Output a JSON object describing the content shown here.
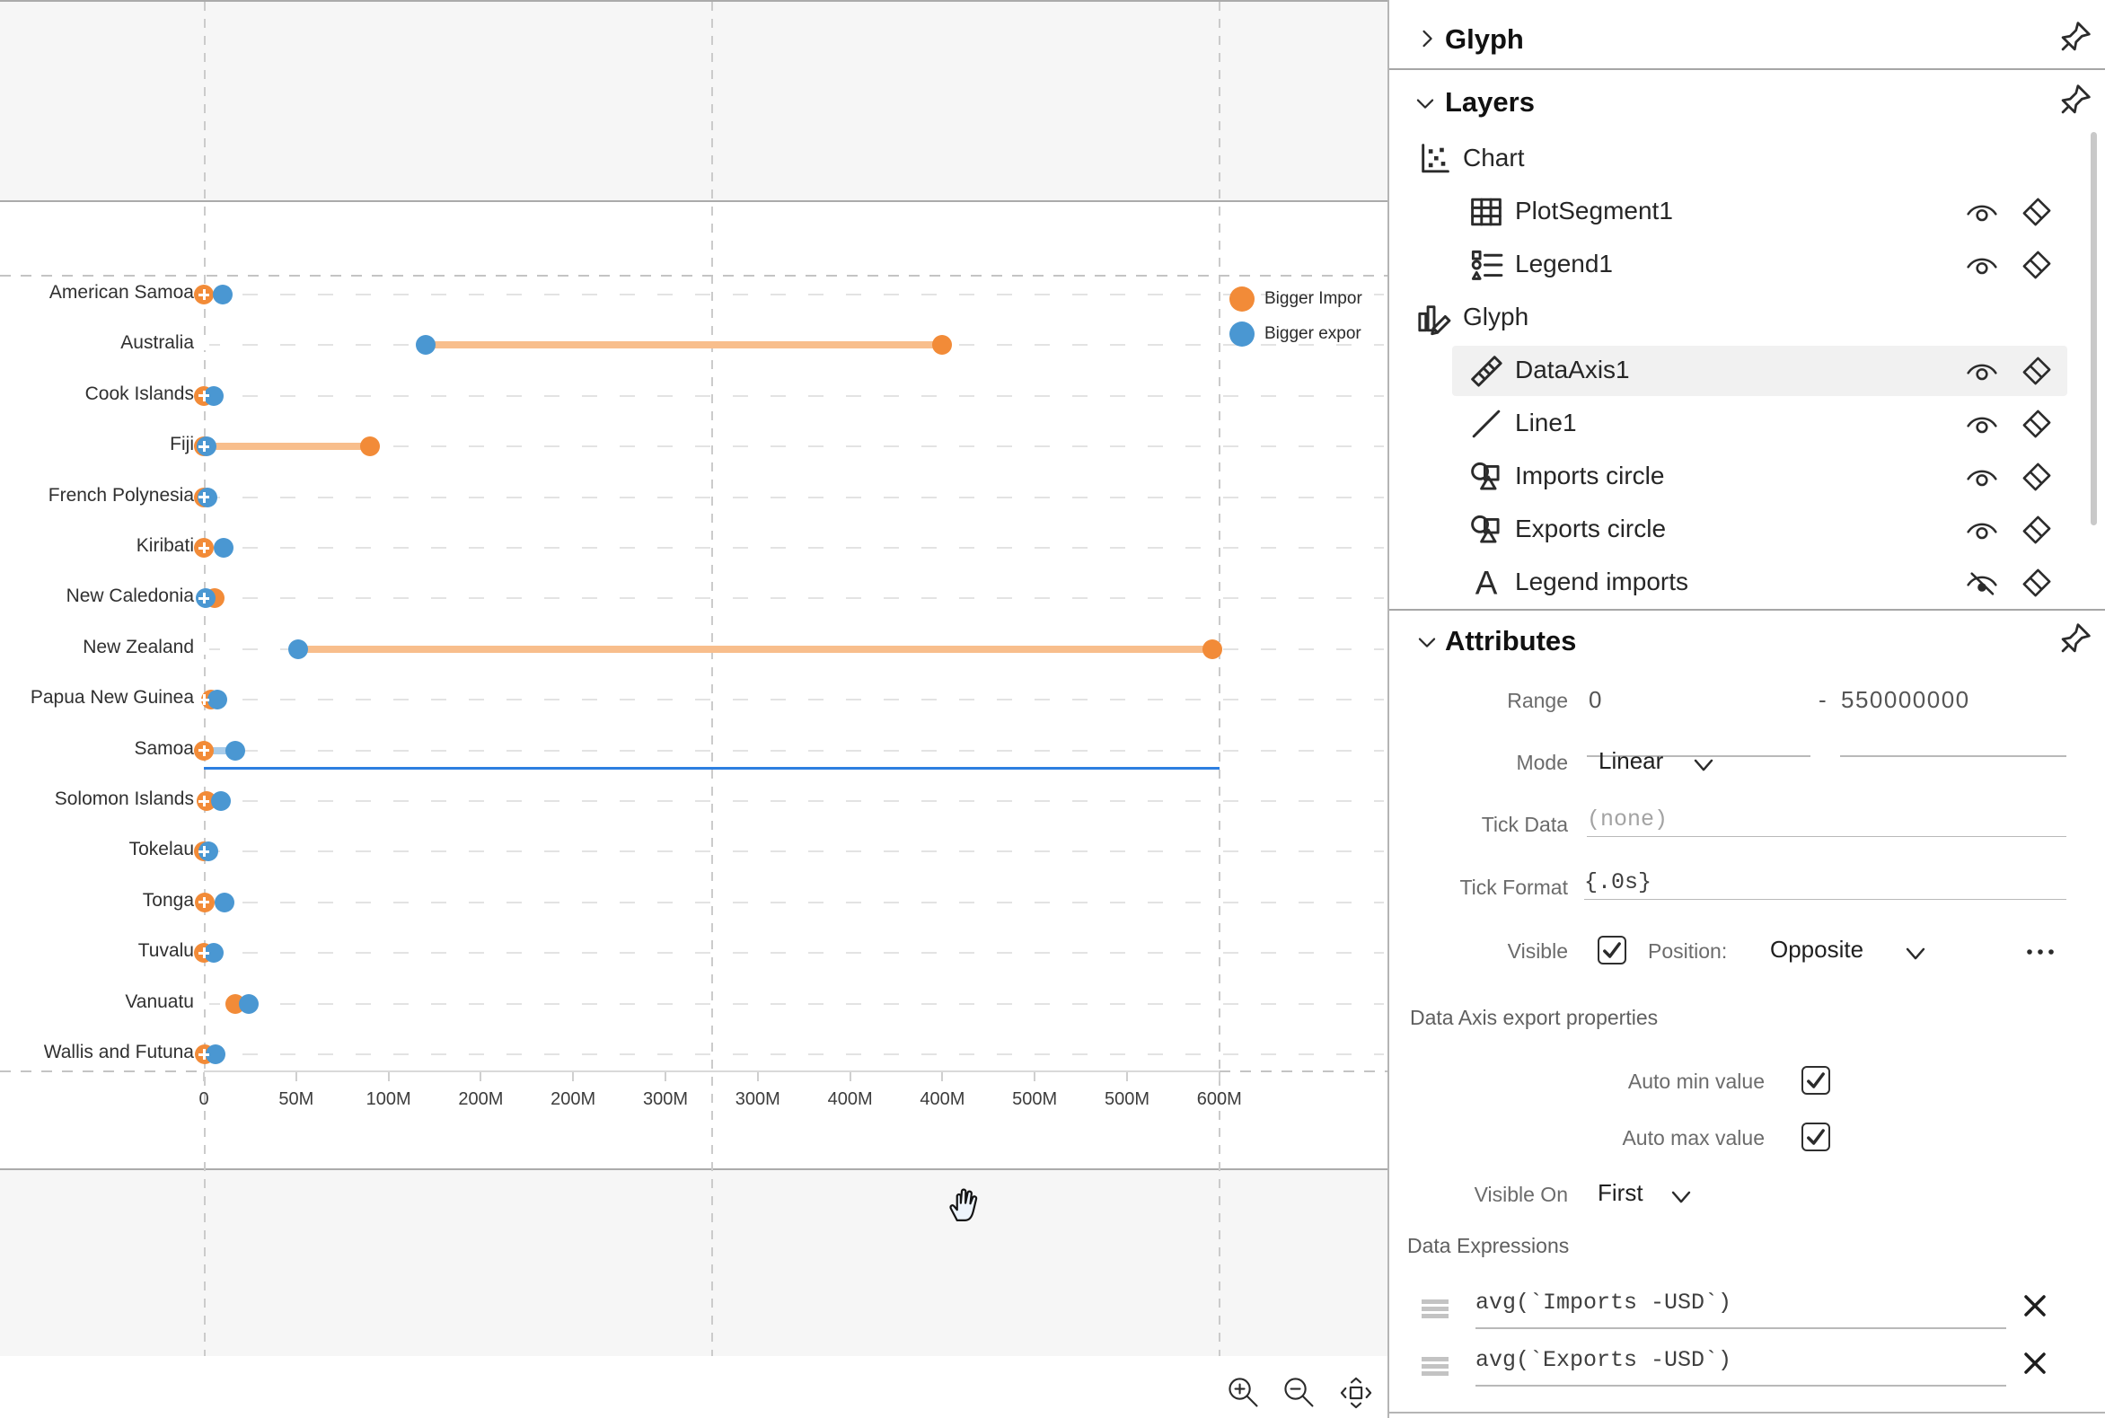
{
  "chart_data": {
    "type": "dumbbell",
    "categories": [
      "American Samoa",
      "Australia",
      "Cook Islands",
      "Fiji",
      "French Polynesia",
      "Kiribati",
      "New Caledonia",
      "New Zealand",
      "Papua New Guinea",
      "Samoa",
      "Solomon Islands",
      "Tokelau",
      "Tonga",
      "Tuvalu",
      "Vanuatu",
      "Wallis and Futuna"
    ],
    "series": [
      {
        "name": "avg(Imports -USD)",
        "color": "#F28B38",
        "values_musd": [
          0.2,
          400,
          0.2,
          90,
          0,
          0.2,
          6,
          546,
          4,
          0.2,
          1.5,
          0,
          0.3,
          0.2,
          17,
          0.5
        ]
      },
      {
        "name": "avg(Exports -USD)",
        "color": "#4A97D2",
        "values_musd": [
          10,
          120,
          5.5,
          1.5,
          2,
          10.5,
          1,
          51,
          7.5,
          17,
          9,
          2.5,
          11,
          5.5,
          24.5,
          6.5
        ]
      }
    ],
    "connectors_visible": [
      false,
      true,
      false,
      true,
      false,
      false,
      false,
      true,
      false,
      true,
      false,
      false,
      false,
      false,
      false,
      false
    ],
    "connector_bigger": [
      "exports",
      "imports",
      "exports",
      "imports",
      "exports",
      "exports",
      "imports",
      "imports",
      "exports",
      "exports",
      "exports",
      "exports",
      "exports",
      "exports",
      "exports",
      "exports"
    ],
    "extra_dots": [
      {
        "category_index": 3,
        "series": "imports",
        "value_musd": 0
      }
    ],
    "x_axis": {
      "min": 0,
      "max": 550000000,
      "tick_step_musd": 50,
      "format": "{.0s}",
      "grid": false,
      "tick_labels": [
        "0",
        "50M",
        "100M",
        "200M",
        "200M",
        "300M",
        "300M",
        "400M",
        "400M",
        "500M",
        "500M",
        "600M"
      ]
    },
    "legend": {
      "position": "right",
      "items": [
        {
          "label": "Bigger Impor",
          "color": "#F28B38"
        },
        {
          "label": "Bigger expor",
          "color": "#4A97D2"
        }
      ]
    },
    "selected_axis_category": "Samoa"
  },
  "colors": {
    "imports_orange": "#F28B38",
    "exports_blue": "#4A97D2",
    "connector_orange": "#F8BE8C",
    "connector_blue": "#A9CCE9",
    "selection_blue": "#2D7FE0"
  },
  "canvas_controls": {
    "icons": [
      "zoom-in-icon",
      "zoom-out-icon",
      "fit-to-screen-icon"
    ],
    "cursor": "open-hand-cursor"
  },
  "panel": {
    "glyph_section": {
      "title": "Glyph",
      "chevron": "chevron-right-icon",
      "pin": "pin-icon"
    },
    "layers_section": {
      "title": "Layers",
      "chevron": "chevron-down-icon",
      "pin": "pin-icon",
      "items": [
        {
          "icon": "chart-icon",
          "label": "Chart",
          "indent": 0,
          "eye": null,
          "selected": false
        },
        {
          "icon": "plot-segment-icon",
          "label": "PlotSegment1",
          "indent": 1,
          "eye": "visible",
          "selected": false
        },
        {
          "icon": "legend-icon",
          "label": "Legend1",
          "indent": 1,
          "eye": "visible",
          "selected": false
        },
        {
          "icon": "glyph-icon",
          "label": "Glyph",
          "indent": 0,
          "eye": null,
          "selected": false
        },
        {
          "icon": "data-axis-icon",
          "label": "DataAxis1",
          "indent": 1,
          "eye": "visible",
          "selected": true
        },
        {
          "icon": "line-icon",
          "label": "Line1",
          "indent": 1,
          "eye": "visible",
          "selected": false
        },
        {
          "icon": "shapes-icon",
          "label": "Imports circle",
          "indent": 1,
          "eye": "visible",
          "selected": false
        },
        {
          "icon": "shapes-icon",
          "label": "Exports circle",
          "indent": 1,
          "eye": "visible",
          "selected": false
        },
        {
          "icon": "text-icon",
          "label": "Legend imports",
          "indent": 1,
          "eye": "hidden",
          "selected": false
        }
      ]
    },
    "attributes_section": {
      "title": "Attributes",
      "chevron": "chevron-down-icon",
      "pin": "pin-icon",
      "range_label": "Range",
      "range_min": "0",
      "range_separator": "-",
      "range_max": "550000000",
      "mode_label": "Mode",
      "mode_value": "Linear",
      "tick_data_label": "Tick Data",
      "tick_data_placeholder": "(none)",
      "tick_format_label": "Tick Format",
      "tick_format_value": "{.0s}",
      "visible_label": "Visible",
      "visible_checked": true,
      "position_label": "Position:",
      "position_value": "Opposite",
      "export_props_label": "Data Axis export properties",
      "auto_min_label": "Auto min value",
      "auto_min_checked": true,
      "auto_max_label": "Auto max value",
      "auto_max_checked": true,
      "visible_on_label": "Visible On",
      "visible_on_value": "First",
      "data_expressions_label": "Data Expressions",
      "expressions": [
        "avg(`Imports -USD`)",
        "avg(`Exports -USD`)"
      ]
    }
  }
}
